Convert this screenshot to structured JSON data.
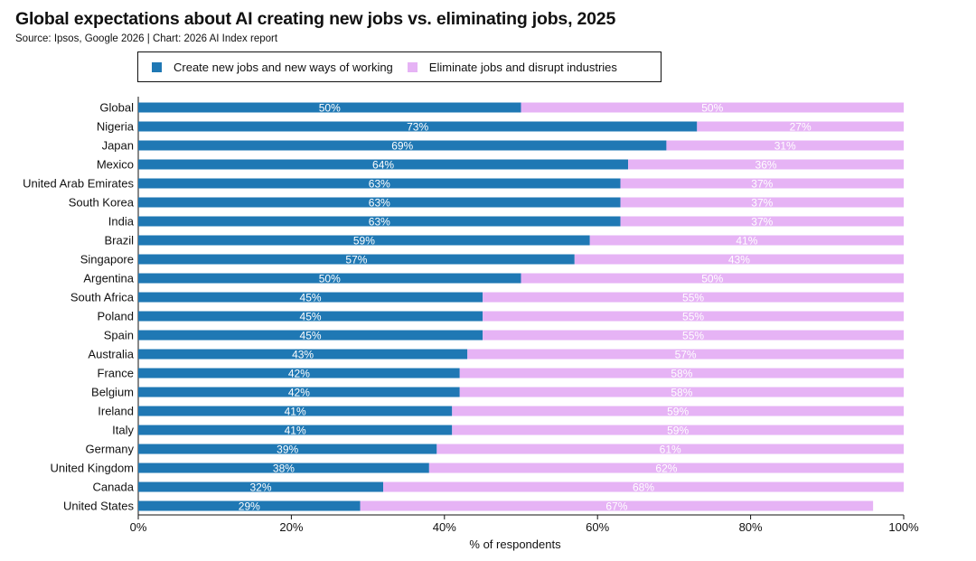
{
  "title": "Global expectations about AI creating new jobs vs. eliminating jobs, 2025",
  "source": "Source: Ipsos, Google 2026 | Chart: 2026 AI Index report",
  "colors": {
    "create": "#1f78b4",
    "eliminate": "#e6b3f5"
  },
  "chart_data": {
    "type": "bar",
    "orientation": "horizontal",
    "stacked": true,
    "xlabel": "% of respondents",
    "ylabel": "",
    "xlim": [
      0,
      100
    ],
    "xticks": [
      "0%",
      "20%",
      "40%",
      "60%",
      "80%",
      "100%"
    ],
    "legend_position": "top",
    "categories": [
      "Global",
      "Nigeria",
      "Japan",
      "Mexico",
      "United Arab Emirates",
      "South Korea",
      "India",
      "Brazil",
      "Singapore",
      "Argentina",
      "South Africa",
      "Poland",
      "Spain",
      "Australia",
      "France",
      "Belgium",
      "Ireland",
      "Italy",
      "Germany",
      "United Kingdom",
      "Canada",
      "United States"
    ],
    "series": [
      {
        "name": "Create new jobs and new ways of working",
        "values": [
          50,
          73,
          69,
          64,
          63,
          63,
          63,
          59,
          57,
          50,
          45,
          45,
          45,
          43,
          42,
          42,
          41,
          41,
          39,
          38,
          32,
          29
        ]
      },
      {
        "name": "Eliminate jobs and disrupt industries",
        "values": [
          50,
          27,
          31,
          36,
          37,
          37,
          37,
          41,
          43,
          50,
          55,
          55,
          55,
          57,
          58,
          58,
          59,
          59,
          61,
          62,
          68,
          67
        ]
      }
    ]
  }
}
